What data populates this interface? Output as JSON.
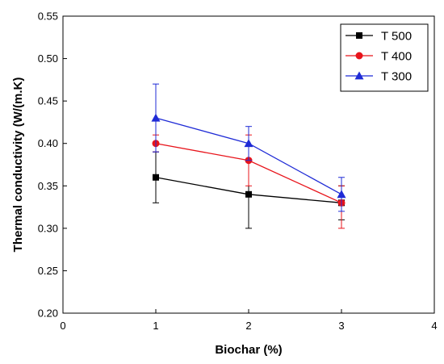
{
  "chart_data": {
    "type": "line",
    "title": "",
    "xlabel": "Biochar (%)",
    "ylabel": "Thermal conductivity (W/(m.K)",
    "xlim": [
      0,
      4
    ],
    "ylim": [
      0.2,
      0.55
    ],
    "xticks": [
      0,
      1,
      2,
      3,
      4
    ],
    "yticks": [
      0.2,
      0.25,
      0.3,
      0.35,
      0.4,
      0.45,
      0.5,
      0.55
    ],
    "xtick_labels": [
      "0",
      "1",
      "2",
      "3",
      "4"
    ],
    "ytick_labels": [
      "0.20",
      "0.25",
      "0.30",
      "0.35",
      "0.40",
      "0.45",
      "0.50",
      "0.55"
    ],
    "grid": false,
    "legend_position": "top-right",
    "series": [
      {
        "name": "T 500",
        "color": "#000000",
        "marker": "square",
        "x": [
          1,
          2,
          3
        ],
        "y": [
          0.36,
          0.34,
          0.33
        ],
        "err_low": [
          0.33,
          0.3,
          0.31
        ],
        "err_high": [
          0.39,
          0.38,
          0.35
        ]
      },
      {
        "name": "T 400",
        "color": "#e8141b",
        "marker": "circle",
        "x": [
          1,
          2,
          3
        ],
        "y": [
          0.4,
          0.38,
          0.33
        ],
        "err_low": [
          0.39,
          0.35,
          0.3
        ],
        "err_high": [
          0.41,
          0.41,
          0.35
        ]
      },
      {
        "name": "T 300",
        "color": "#1f2bd6",
        "marker": "triangle",
        "x": [
          1,
          2,
          3
        ],
        "y": [
          0.43,
          0.4,
          0.34
        ],
        "err_low": [
          0.39,
          0.38,
          0.32
        ],
        "err_high": [
          0.47,
          0.42,
          0.36
        ]
      }
    ]
  }
}
